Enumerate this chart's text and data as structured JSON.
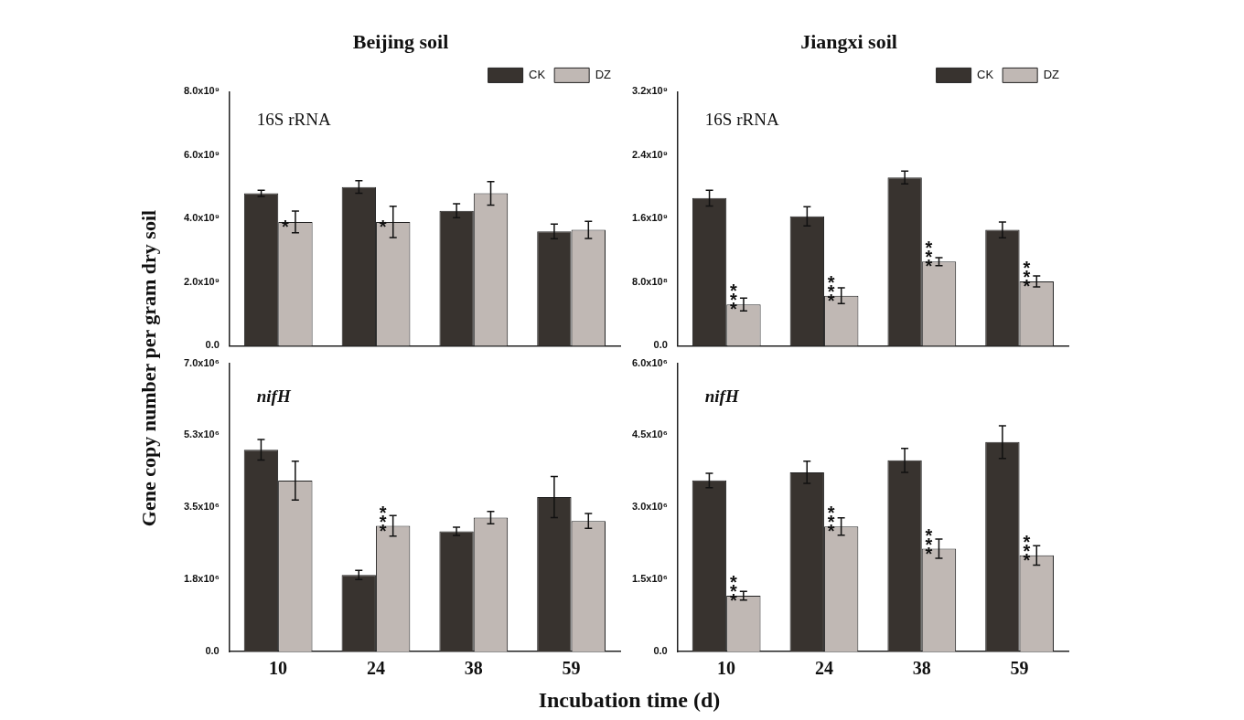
{
  "chart_data": [
    {
      "type": "bar",
      "title": "Beijing soil",
      "ylabel": "Gene copy number per gram dry soil",
      "categories": [
        "10",
        "24",
        "38",
        "59"
      ],
      "tick_labels": "y",
      "legend": "top right",
      "series": [
        {
          "name": "CK",
          "color": "#38332f",
          "values": [
            4800000000.0,
            5000000000.0,
            4250000000.0,
            3600000000.0
          ],
          "errors": [
            100000000.0,
            200000000.0,
            220000000.0,
            230000000.0
          ]
        },
        {
          "name": "DZ",
          "color": "#c0b8b4",
          "values": [
            3900000000.0,
            3900000000.0,
            4800000000.0,
            3650000000.0
          ],
          "errors": [
            340000000.0,
            490000000.0,
            370000000.0,
            270000000.0
          ]
        }
      ],
      "ylim": [
        0,
        8000000000.0
      ],
      "yticks": [
        {
          "value": 0,
          "label": "0.0"
        },
        {
          "value": 2000000000.0,
          "label": "2.0x10⁹"
        },
        {
          "value": 4000000000.0,
          "label": "4.0x10⁹"
        },
        {
          "value": 6000000000.0,
          "label": "6.0x10⁹"
        },
        {
          "value": 8000000000.0,
          "label": "8.0x10⁹"
        }
      ],
      "annotations": [
        "16S rRNA",
        {
          "text": "*",
          "x": "10",
          "y": 3900000000.0
        },
        {
          "text": "*",
          "x": "24",
          "y": 3900000000.0
        }
      ]
    },
    {
      "type": "bar",
      "title": "Jiangxi soil",
      "categories": [
        "10",
        "24",
        "38",
        "59"
      ],
      "tick_labels": "y",
      "legend": "top right",
      "series": [
        {
          "name": "CK",
          "color": "#38332f",
          "values": [
            1860000000.0,
            1630000000.0,
            2120000000.0,
            1460000000.0
          ],
          "errors": [
            100000000.0,
            120000000.0,
            80000000.0,
            100000000.0
          ]
        },
        {
          "name": "DZ",
          "color": "#c0b8b4",
          "values": [
            520000000.0,
            630000000.0,
            1060000000.0,
            810000000.0
          ],
          "errors": [
            80000000.0,
            100000000.0,
            50000000.0,
            70000000.0
          ]
        }
      ],
      "ylim": [
        0,
        3200000000.0
      ],
      "yticks": [
        {
          "value": 0,
          "label": "0.0"
        },
        {
          "value": 800000000.0,
          "label": "8.0x10⁸"
        },
        {
          "value": 1600000000.0,
          "label": "1.6x10⁹"
        },
        {
          "value": 2400000000.0,
          "label": "2.4x10⁹"
        },
        {
          "value": 3200000000.0,
          "label": "3.2x10⁹"
        }
      ],
      "annotations": [
        "16S rRNA",
        {
          "text": "***",
          "x": "10",
          "y": 520000000.0
        },
        {
          "text": "***",
          "x": "24",
          "y": 630000000.0
        },
        {
          "text": "***",
          "x": "38",
          "y": 1060000000.0
        },
        {
          "text": "***",
          "x": "59",
          "y": 810000000.0
        }
      ]
    },
    {
      "type": "bar",
      "xlabel": "Incubation time (d)",
      "categories": [
        "10",
        "24",
        "38",
        "59"
      ],
      "series": [
        {
          "color": "#38332f",
          "values": [
            4900000.0,
            1860000.0,
            2920000.0,
            3750000.0
          ],
          "errors": [
            250000.0,
            110000.0,
            100000.0,
            500000.0
          ]
        },
        {
          "color": "#c0b8b4",
          "values": [
            4150000.0,
            3050000.0,
            3250000.0,
            3170000.0
          ],
          "errors": [
            470000.0,
            250000.0,
            150000.0,
            180000.0
          ]
        }
      ],
      "ylim": [
        0,
        7000000.0
      ],
      "yticks": [
        {
          "value": 0,
          "label": "0.0"
        },
        {
          "value": 1750000.0,
          "label": "1.8x10⁶"
        },
        {
          "value": 3500000.0,
          "label": "3.5x10⁶"
        },
        {
          "value": 5250000.0,
          "label": "5.3x10⁶"
        },
        {
          "value": 7000000.0,
          "label": "7.0x10⁶"
        }
      ],
      "annotations": [
        "nifH",
        {
          "text": "***",
          "x": "24",
          "y": 3050000.0
        }
      ]
    },
    {
      "type": "bar",
      "categories": [
        "10",
        "24",
        "38",
        "59"
      ],
      "series": [
        {
          "color": "#38332f",
          "values": [
            3560000.0,
            3730000.0,
            3980000.0,
            4360000.0
          ],
          "errors": [
            150000.0,
            230000.0,
            250000.0,
            340000.0
          ]
        },
        {
          "color": "#c0b8b4",
          "values": [
            1160000.0,
            2600000.0,
            2140000.0,
            2000000.0
          ],
          "errors": [
            90000.0,
            180000.0,
            200000.0,
            200000.0
          ]
        }
      ],
      "ylim": [
        0,
        6000000.0
      ],
      "yticks": [
        {
          "value": 0,
          "label": "0.0"
        },
        {
          "value": 1500000.0,
          "label": "1.5x10⁶"
        },
        {
          "value": 3000000.0,
          "label": "3.0x10⁶"
        },
        {
          "value": 4500000.0,
          "label": "4.5x10⁶"
        },
        {
          "value": 6000000.0,
          "label": "6.0x10⁶"
        }
      ],
      "annotations": [
        "nifH",
        {
          "text": "***",
          "x": "10",
          "y": 1160000.0
        },
        {
          "text": "***",
          "x": "24",
          "y": 2600000.0
        },
        {
          "text": "***",
          "x": "38",
          "y": 2140000.0
        },
        {
          "text": "***",
          "x": "59",
          "y": 2000000.0
        }
      ]
    }
  ]
}
